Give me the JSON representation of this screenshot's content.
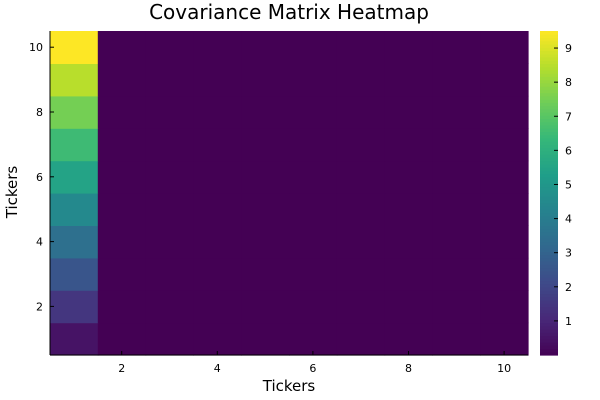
{
  "chart_data": {
    "type": "heatmap",
    "title": "Covariance Matrix Heatmap",
    "xlabel": "Tickers",
    "ylabel": "Tickers",
    "x": [
      1,
      2,
      3,
      4,
      5,
      6,
      7,
      8,
      9,
      10
    ],
    "y": [
      1,
      2,
      3,
      4,
      5,
      6,
      7,
      8,
      9,
      10
    ],
    "values": [
      [
        0.5,
        0,
        0,
        0,
        0,
        0,
        0,
        0,
        0,
        0
      ],
      [
        1.5,
        0,
        0,
        0,
        0,
        0,
        0,
        0,
        0,
        0
      ],
      [
        2.5,
        0,
        0,
        0,
        0,
        0,
        0,
        0,
        0,
        0
      ],
      [
        3.5,
        0,
        0,
        0,
        0,
        0,
        0,
        0,
        0,
        0
      ],
      [
        4.5,
        0,
        0,
        0,
        0,
        0,
        0,
        0,
        0,
        0
      ],
      [
        5.5,
        0,
        0,
        0,
        0,
        0,
        0,
        0,
        0,
        0
      ],
      [
        6.5,
        0,
        0,
        0,
        0,
        0,
        0,
        0,
        0,
        0
      ],
      [
        7.5,
        0,
        0,
        0,
        0,
        0,
        0,
        0,
        0,
        0
      ],
      [
        8.5,
        0,
        0,
        0,
        0,
        0,
        0,
        0,
        0,
        0
      ],
      [
        9.5,
        0,
        0,
        0,
        0,
        0,
        0,
        0,
        0,
        0
      ]
    ],
    "xlim": [
      0.5,
      10.5
    ],
    "ylim": [
      0.5,
      10.5
    ],
    "x_ticks": [
      "2",
      "4",
      "6",
      "8",
      "10"
    ],
    "y_ticks": [
      "2",
      "4",
      "6",
      "8",
      "10"
    ],
    "color_range": [
      0,
      9.5
    ],
    "colorbar_ticks": [
      "1",
      "2",
      "3",
      "4",
      "5",
      "6",
      "7",
      "8",
      "9"
    ],
    "colormap": "viridis",
    "grid": false,
    "colorbar": "right"
  }
}
